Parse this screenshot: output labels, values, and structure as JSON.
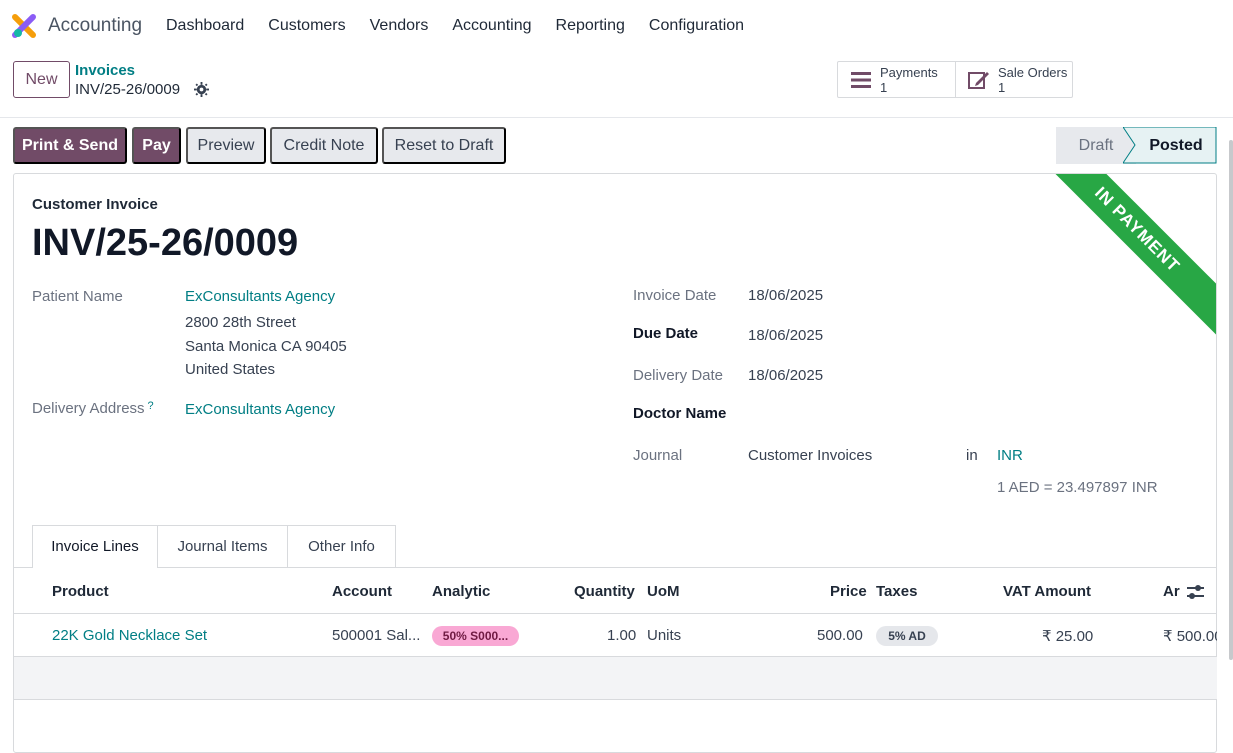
{
  "app": {
    "name": "Accounting",
    "menu": [
      "Dashboard",
      "Customers",
      "Vendors",
      "Accounting",
      "Reporting",
      "Configuration"
    ]
  },
  "control": {
    "new_label": "New",
    "breadcrumb_parent": "Invoices",
    "breadcrumb_current": "INV/25-26/0009"
  },
  "smart_buttons": [
    {
      "label": "Payments",
      "value": "1",
      "icon": "list-icon"
    },
    {
      "label": "Sale Orders",
      "value": "1",
      "icon": "edit-icon"
    }
  ],
  "actions": {
    "print_send": "Print & Send",
    "pay": "Pay",
    "preview": "Preview",
    "credit_note": "Credit Note",
    "reset": "Reset to Draft"
  },
  "status": {
    "draft": "Draft",
    "posted": "Posted"
  },
  "ribbon": "IN PAYMENT",
  "invoice": {
    "type": "Customer Invoice",
    "number": "INV/25-26/0009",
    "patient_label": "Patient Name",
    "patient": "ExConsultants Agency",
    "address_line1": "2800 28th Street",
    "address_line2": "Santa Monica CA 90405",
    "address_line3": "United States",
    "delivery_address_label": "Delivery Address",
    "delivery_address_help": "?",
    "delivery_address": "ExConsultants Agency",
    "invoice_date_label": "Invoice Date",
    "invoice_date": "18/06/2025",
    "due_date_label": "Due Date",
    "due_date": "18/06/2025",
    "delivery_date_label": "Delivery Date",
    "delivery_date": "18/06/2025",
    "doctor_label": "Doctor Name",
    "journal_label": "Journal",
    "journal": "Customer Invoices",
    "in_label": "in",
    "currency": "INR",
    "rate": "1 AED = 23.497897 INR"
  },
  "tabs": [
    "Invoice Lines",
    "Journal Items",
    "Other Info"
  ],
  "table": {
    "headers": {
      "product": "Product",
      "account": "Account",
      "analytic": "Analytic",
      "quantity": "Quantity",
      "uom": "UoM",
      "price": "Price",
      "taxes": "Taxes",
      "vat": "VAT Amount",
      "amount": "Ar"
    },
    "rows": [
      {
        "product": "22K Gold Necklace Set",
        "account": "500001 Sal...",
        "analytic": "50% S000...",
        "quantity": "1.00",
        "uom": "Units",
        "price": "500.00",
        "taxes": "5% AD",
        "vat": "₹ 25.00",
        "amount": "₹ 500.00"
      }
    ]
  },
  "colors": {
    "brand": "#714b67",
    "link": "#017e84",
    "ribbon": "#28a745"
  }
}
